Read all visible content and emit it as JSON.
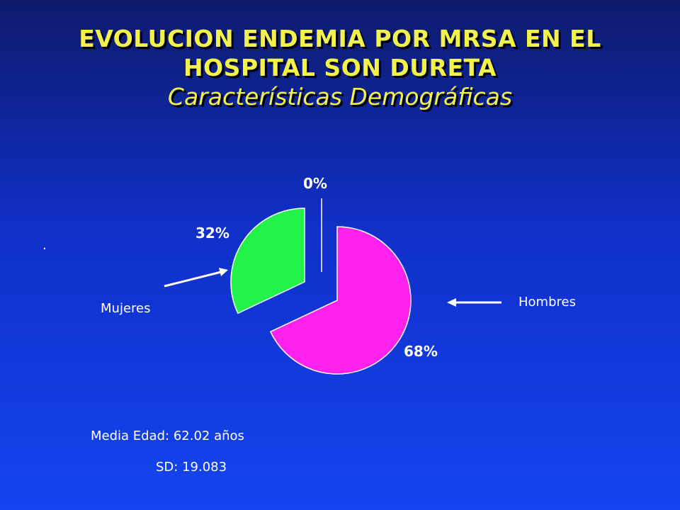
{
  "title": {
    "line1": "EVOLUCION ENDEMIA POR MRSA EN EL",
    "line2": "HOSPITAL SON DURETA",
    "subtitle": "Características Demográficas"
  },
  "stray_mark": ".",
  "colors": {
    "title": "#f2f24a",
    "background_top": "#0d1a6b",
    "background_bottom": "#1444f0",
    "text": "#ffffff"
  },
  "chart_data": {
    "type": "pie",
    "slices": [
      {
        "label": "Hombres",
        "value": 68,
        "value_label": "68%",
        "color": "#ff22ee"
      },
      {
        "label": "Mujeres",
        "value": 32,
        "value_label": "32%",
        "color": "#22f24a"
      },
      {
        "label": "",
        "value": 0,
        "value_label": "0%",
        "color": "#ffffff"
      }
    ]
  },
  "stats": {
    "mean_age": "Media Edad: 62.02 años",
    "sd": "SD: 19.083"
  }
}
